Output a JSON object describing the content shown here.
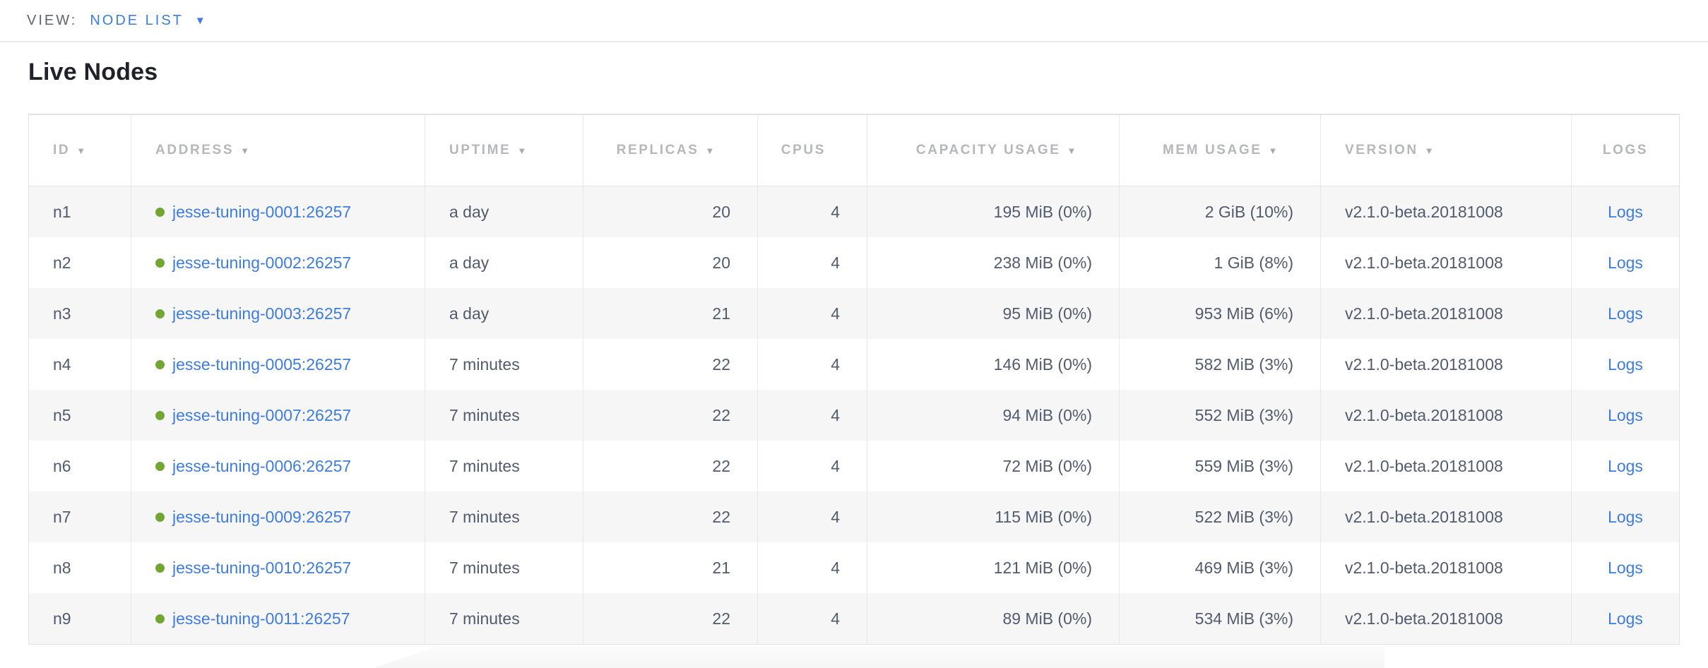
{
  "view_bar": {
    "label": "VIEW:",
    "selected": "NODE LIST",
    "caret_icon": "▼"
  },
  "page": {
    "title": "Live Nodes"
  },
  "table": {
    "columns": [
      {
        "key": "id",
        "label": "ID",
        "sortable": true,
        "align": "left"
      },
      {
        "key": "address",
        "label": "ADDRESS",
        "sortable": true,
        "align": "left"
      },
      {
        "key": "uptime",
        "label": "UPTIME",
        "sortable": true,
        "align": "left"
      },
      {
        "key": "replicas",
        "label": "REPLICAS",
        "sortable": true,
        "align": "right"
      },
      {
        "key": "cpus",
        "label": "CPUS",
        "sortable": false,
        "align": "right"
      },
      {
        "key": "capacity",
        "label": "CAPACITY USAGE",
        "sortable": true,
        "align": "right"
      },
      {
        "key": "mem",
        "label": "MEM USAGE",
        "sortable": true,
        "align": "right"
      },
      {
        "key": "version",
        "label": "VERSION",
        "sortable": true,
        "align": "left"
      },
      {
        "key": "logs",
        "label": "LOGS",
        "sortable": false,
        "align": "center"
      }
    ],
    "sort_icon": "▼",
    "logs_link_label": "Logs",
    "rows": [
      {
        "id": "n1",
        "address": "jesse-tuning-0001:26257",
        "uptime": "a day",
        "replicas": "20",
        "cpus": "4",
        "capacity": "195 MiB (0%)",
        "mem": "2 GiB (10%)",
        "version": "v2.1.0-beta.20181008"
      },
      {
        "id": "n2",
        "address": "jesse-tuning-0002:26257",
        "uptime": "a day",
        "replicas": "20",
        "cpus": "4",
        "capacity": "238 MiB (0%)",
        "mem": "1 GiB (8%)",
        "version": "v2.1.0-beta.20181008"
      },
      {
        "id": "n3",
        "address": "jesse-tuning-0003:26257",
        "uptime": "a day",
        "replicas": "21",
        "cpus": "4",
        "capacity": "95 MiB (0%)",
        "mem": "953 MiB (6%)",
        "version": "v2.1.0-beta.20181008"
      },
      {
        "id": "n4",
        "address": "jesse-tuning-0005:26257",
        "uptime": "7 minutes",
        "replicas": "22",
        "cpus": "4",
        "capacity": "146 MiB (0%)",
        "mem": "582 MiB (3%)",
        "version": "v2.1.0-beta.20181008"
      },
      {
        "id": "n5",
        "address": "jesse-tuning-0007:26257",
        "uptime": "7 minutes",
        "replicas": "22",
        "cpus": "4",
        "capacity": "94 MiB (0%)",
        "mem": "552 MiB (3%)",
        "version": "v2.1.0-beta.20181008"
      },
      {
        "id": "n6",
        "address": "jesse-tuning-0006:26257",
        "uptime": "7 minutes",
        "replicas": "22",
        "cpus": "4",
        "capacity": "72 MiB (0%)",
        "mem": "559 MiB (3%)",
        "version": "v2.1.0-beta.20181008"
      },
      {
        "id": "n7",
        "address": "jesse-tuning-0009:26257",
        "uptime": "7 minutes",
        "replicas": "22",
        "cpus": "4",
        "capacity": "115 MiB (0%)",
        "mem": "522 MiB (3%)",
        "version": "v2.1.0-beta.20181008"
      },
      {
        "id": "n8",
        "address": "jesse-tuning-0010:26257",
        "uptime": "7 minutes",
        "replicas": "21",
        "cpus": "4",
        "capacity": "121 MiB (0%)",
        "mem": "469 MiB (3%)",
        "version": "v2.1.0-beta.20181008"
      },
      {
        "id": "n9",
        "address": "jesse-tuning-0011:26257",
        "uptime": "7 minutes",
        "replicas": "22",
        "cpus": "4",
        "capacity": "89 MiB (0%)",
        "mem": "534 MiB (3%)",
        "version": "v2.1.0-beta.20181008"
      }
    ]
  },
  "colors": {
    "link": "#3e7ce1",
    "live_dot": "#73a533",
    "header_text": "#b5b7bb",
    "cell_text": "#525b6e",
    "row_stripe": "#f6f6f7"
  }
}
